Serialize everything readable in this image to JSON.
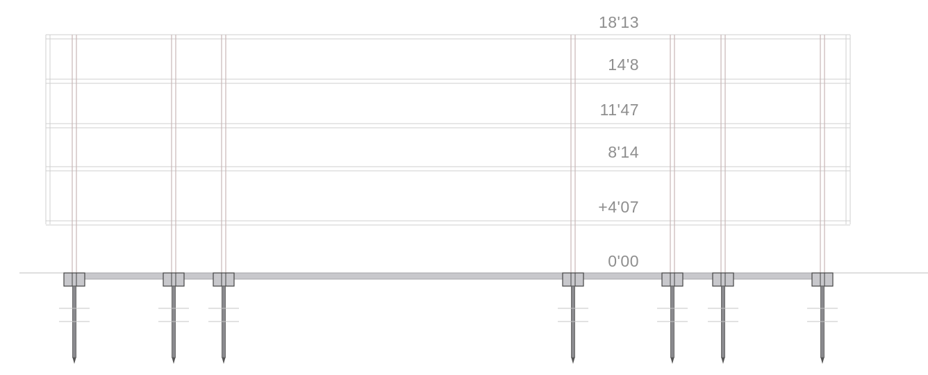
{
  "diagram": {
    "type": "structural-elevation-section",
    "levels": [
      {
        "label": "18'13"
      },
      {
        "label": "14'8"
      },
      {
        "label": "11'47"
      },
      {
        "label": "8'14"
      },
      {
        "label": "+4'07"
      },
      {
        "label": "0'00"
      }
    ],
    "column_count": 7,
    "colors": {
      "slab_line": "#cfcfcf",
      "column": "#c9b6b6",
      "foundation_fill": "#c8c8cc",
      "foundation_stroke": "#444444",
      "pile": "#555555",
      "ground": "#bdbdbd",
      "label": "#8e8e8e"
    }
  }
}
